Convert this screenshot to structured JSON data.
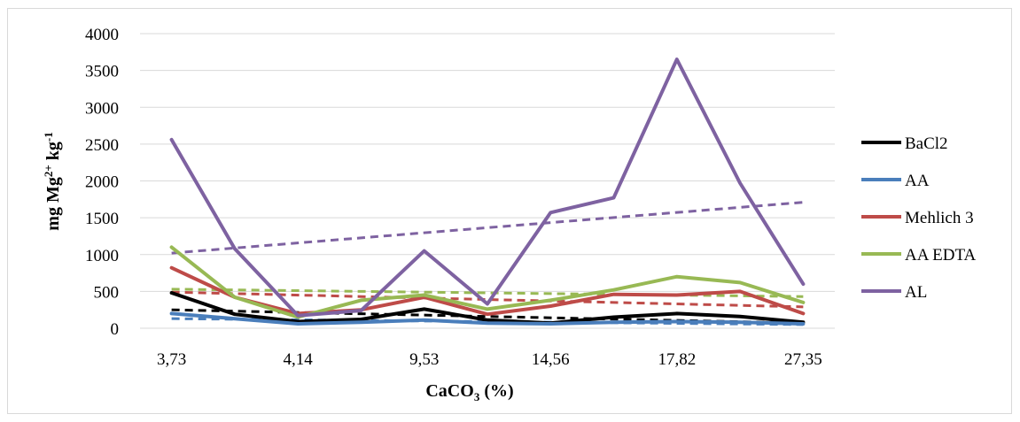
{
  "chart_data": {
    "type": "line",
    "categories": [
      "3,73",
      "",
      "4,14",
      "",
      "9,53",
      "",
      "14,56",
      "",
      "17,82",
      "",
      "27,35"
    ],
    "xlabel_main": "CaCO",
    "xlabel_sub": "3",
    "xlabel_tail": " (%)",
    "ylabel_main": "mg Mg",
    "ylabel_sup": "2+",
    "ylabel_mid": " kg",
    "ylabel_sup2": "-1",
    "ylim": [
      0,
      4000
    ],
    "yticks": [
      "0",
      "500",
      "1000",
      "1500",
      "2000",
      "2500",
      "3000",
      "3500",
      "4000"
    ],
    "ytick_values": [
      0,
      500,
      1000,
      1500,
      2000,
      2500,
      3000,
      3500,
      4000
    ],
    "grid": "horizontal",
    "legend_position": "right",
    "series": [
      {
        "name": "BaCl2",
        "color": "#000000",
        "values": [
          480,
          190,
          90,
          120,
          260,
          110,
          70,
          150,
          200,
          160,
          80
        ],
        "trend": [
          250,
          70
        ]
      },
      {
        "name": "AA",
        "color": "#4a7ebb",
        "values": [
          200,
          130,
          60,
          80,
          110,
          70,
          60,
          80,
          90,
          80,
          60
        ],
        "trend": [
          130,
          50
        ]
      },
      {
        "name": "Mehlich 3",
        "color": "#be4b48",
        "values": [
          820,
          420,
          200,
          250,
          420,
          190,
          300,
          460,
          450,
          500,
          200
        ],
        "trend": [
          490,
          290
        ]
      },
      {
        "name": "AA EDTA",
        "color": "#98b954",
        "values": [
          1100,
          420,
          150,
          380,
          450,
          260,
          380,
          520,
          700,
          620,
          350
        ],
        "trend": [
          530,
          430
        ]
      },
      {
        "name": "AL",
        "color": "#7e62a1",
        "values": [
          2560,
          1080,
          170,
          240,
          1050,
          330,
          1570,
          1770,
          3650,
          1970,
          600
        ],
        "trend": [
          1020,
          1710
        ]
      }
    ]
  }
}
